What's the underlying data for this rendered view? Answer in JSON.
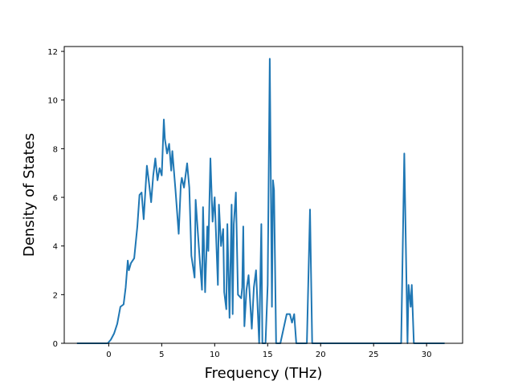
{
  "chart_data": {
    "type": "line",
    "title": "",
    "xlabel": "Frequency (THz)",
    "ylabel": "Density of States",
    "xlim": [
      -4.2,
      33.4
    ],
    "ylim": [
      0,
      12.2
    ],
    "xticks": [
      0,
      5,
      10,
      15,
      20,
      25,
      30
    ],
    "yticks": [
      0,
      2,
      4,
      6,
      8,
      10,
      12
    ],
    "grid": false,
    "legend": "none",
    "series": [
      {
        "color": "#1f77b4",
        "x": [
          -3.0,
          -0.1,
          0.2,
          0.5,
          0.8,
          1.1,
          1.4,
          1.6,
          1.8,
          1.9,
          2.1,
          2.4,
          2.7,
          2.9,
          3.1,
          3.3,
          3.6,
          3.8,
          4.0,
          4.2,
          4.4,
          4.6,
          4.8,
          5.0,
          5.2,
          5.3,
          5.5,
          5.7,
          5.9,
          6.0,
          6.3,
          6.6,
          6.8,
          6.9,
          7.1,
          7.4,
          7.6,
          7.8,
          8.1,
          8.2,
          8.5,
          8.8,
          8.9,
          9.1,
          9.3,
          9.4,
          9.6,
          9.8,
          10.0,
          10.3,
          10.4,
          10.6,
          10.8,
          10.9,
          11.1,
          11.2,
          11.4,
          11.6,
          11.7,
          11.8,
          12.0,
          12.2,
          12.5,
          12.6,
          12.7,
          12.8,
          13.0,
          13.2,
          13.5,
          13.7,
          13.9,
          14.2,
          14.4,
          14.5,
          14.6,
          14.8,
          15.0,
          15.2,
          15.4,
          15.5,
          15.6,
          15.8,
          16.2,
          16.8,
          17.1,
          17.3,
          17.5,
          17.7,
          17.9,
          18.1,
          18.7,
          19.0,
          19.2,
          19.4,
          19.6,
          20.5,
          26.5,
          27.6,
          27.9,
          28.2,
          28.3,
          28.5,
          28.6,
          28.8,
          29.0,
          29.3,
          31.7
        ],
        "y": [
          0,
          0,
          0.15,
          0.4,
          0.8,
          1.5,
          1.6,
          2.3,
          3.4,
          3.0,
          3.3,
          3.5,
          4.8,
          6.1,
          6.2,
          5.1,
          7.3,
          6.6,
          5.8,
          6.9,
          7.6,
          6.7,
          7.2,
          6.9,
          9.2,
          8.4,
          7.8,
          8.2,
          7.1,
          7.9,
          6.3,
          4.5,
          6.5,
          6.8,
          6.4,
          7.4,
          6.4,
          3.6,
          2.7,
          5.9,
          4.0,
          2.2,
          5.6,
          2.1,
          4.8,
          3.8,
          7.6,
          5.0,
          6.0,
          2.4,
          5.7,
          4.0,
          4.7,
          2.1,
          1.4,
          4.9,
          1.05,
          5.7,
          1.2,
          4.9,
          6.2,
          2.0,
          1.85,
          2.3,
          4.8,
          0.7,
          2.2,
          2.8,
          0.6,
          2.3,
          3.0,
          0,
          4.9,
          0,
          0,
          0,
          2.4,
          11.7,
          1.5,
          6.7,
          6.3,
          0,
          0,
          1.2,
          1.2,
          0.85,
          1.2,
          0,
          0,
          0,
          0,
          5.5,
          0,
          0,
          0,
          0,
          0,
          0,
          7.8,
          0,
          2.4,
          1.5,
          2.4,
          0,
          0,
          0,
          0
        ]
      }
    ]
  }
}
